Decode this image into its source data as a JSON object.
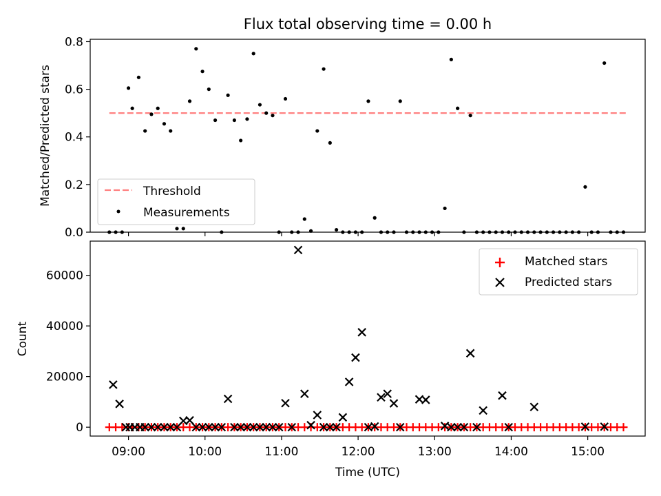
{
  "chart_data": [
    {
      "type": "scatter",
      "title": "Flux total observing time = 0.00 h",
      "xlabel": "",
      "ylabel": "Matched/Predicted stars",
      "ylim": [
        0.0,
        0.81
      ],
      "yticks": [
        "0.0",
        "0.2",
        "0.4",
        "0.6",
        "0.8"
      ],
      "legend": {
        "placement": "lower-left",
        "entries": [
          "Threshold",
          "Measurements"
        ]
      },
      "threshold": {
        "name": "Threshold",
        "x": [
          "08:45",
          "15:30"
        ],
        "y": 0.5,
        "color": "#ff7f7f"
      },
      "series": [
        {
          "name": "Measurements",
          "color": "#000000",
          "x": [
            "08:45",
            "08:50",
            "08:55",
            "09:00",
            "09:03",
            "09:08",
            "09:13",
            "09:18",
            "09:23",
            "09:28",
            "09:33",
            "09:38",
            "09:43",
            "09:48",
            "09:53",
            "09:58",
            "10:03",
            "10:08",
            "10:13",
            "10:18",
            "10:23",
            "10:28",
            "10:33",
            "10:38",
            "10:43",
            "10:48",
            "10:53",
            "10:58",
            "11:03",
            "11:08",
            "11:13",
            "11:18",
            "11:23",
            "11:28",
            "11:33",
            "11:38",
            "11:43",
            "11:48",
            "11:53",
            "11:58",
            "12:03",
            "12:08",
            "12:13",
            "12:18",
            "12:23",
            "12:28",
            "12:33",
            "12:38",
            "12:43",
            "12:48",
            "12:53",
            "12:58",
            "13:03",
            "13:08",
            "13:13",
            "13:18",
            "13:23",
            "13:28",
            "13:33",
            "13:38",
            "13:43",
            "13:48",
            "13:53",
            "13:58",
            "14:03",
            "14:08",
            "14:13",
            "14:18",
            "14:23",
            "14:28",
            "14:33",
            "14:38",
            "14:43",
            "14:48",
            "14:53",
            "14:58",
            "15:03",
            "15:08",
            "15:13",
            "15:18",
            "15:23",
            "15:28"
          ],
          "y": [
            0.0,
            0.0,
            0.0,
            0.605,
            0.52,
            0.65,
            0.425,
            0.495,
            0.52,
            0.455,
            0.425,
            0.015,
            0.015,
            0.55,
            0.77,
            0.675,
            0.6,
            0.47,
            0.0,
            0.575,
            0.47,
            0.385,
            0.475,
            0.75,
            0.535,
            0.5,
            0.49,
            0.0,
            0.56,
            0.0,
            0.0,
            0.055,
            0.005,
            0.425,
            0.685,
            0.375,
            0.01,
            0.0,
            0.0,
            0.0,
            0.0,
            0.55,
            0.06,
            0.0,
            0.0,
            0.0,
            0.55,
            0.0,
            0.0,
            0.0,
            0.0,
            0.0,
            0.0,
            0.1,
            0.725,
            0.52,
            0.0,
            0.49,
            0.0,
            0.0,
            0.0,
            0.0,
            0.0,
            0.0,
            0.0,
            0.0,
            0.0,
            0.0,
            0.0,
            0.0,
            0.0,
            0.0,
            0.0,
            0.0,
            0.0,
            0.19,
            0.0,
            0.0,
            0.71,
            0.0,
            0.0,
            0.0
          ]
        }
      ]
    },
    {
      "type": "scatter",
      "xlabel": "Time (UTC)",
      "ylabel": "Count",
      "ylim": [
        -3500,
        73500
      ],
      "yticks": [
        "0",
        "20000",
        "40000",
        "60000"
      ],
      "xlim": [
        "08:30",
        "15:45"
      ],
      "xticks": [
        "09:00",
        "10:00",
        "11:00",
        "12:00",
        "13:00",
        "14:00",
        "15:00"
      ],
      "legend": {
        "placement": "top-right",
        "entries": [
          "Matched stars",
          "Predicted stars"
        ]
      },
      "series": [
        {
          "name": "Matched stars",
          "marker": "plus",
          "color": "#ff0000",
          "x": [
            "08:45",
            "08:50",
            "08:55",
            "09:00",
            "09:03",
            "09:08",
            "09:13",
            "09:18",
            "09:23",
            "09:28",
            "09:33",
            "09:38",
            "09:43",
            "09:48",
            "09:53",
            "09:58",
            "10:03",
            "10:08",
            "10:13",
            "10:18",
            "10:23",
            "10:28",
            "10:33",
            "10:38",
            "10:43",
            "10:48",
            "10:53",
            "10:58",
            "11:03",
            "11:08",
            "11:13",
            "11:18",
            "11:23",
            "11:28",
            "11:33",
            "11:38",
            "11:43",
            "11:48",
            "11:53",
            "11:58",
            "12:03",
            "12:08",
            "12:13",
            "12:18",
            "12:23",
            "12:28",
            "12:33",
            "12:38",
            "12:43",
            "12:48",
            "12:53",
            "12:58",
            "13:03",
            "13:08",
            "13:13",
            "13:18",
            "13:23",
            "13:28",
            "13:33",
            "13:38",
            "13:43",
            "13:48",
            "13:53",
            "13:58",
            "14:03",
            "14:08",
            "14:13",
            "14:18",
            "14:23",
            "14:28",
            "14:33",
            "14:38",
            "14:43",
            "14:48",
            "14:53",
            "14:58",
            "15:03",
            "15:08",
            "15:13",
            "15:18",
            "15:23",
            "15:28"
          ],
          "y": [
            0,
            0,
            0,
            0,
            0,
            0,
            0,
            0,
            0,
            0,
            0,
            0,
            0,
            0,
            0,
            0,
            0,
            0,
            0,
            0,
            0,
            0,
            0,
            0,
            0,
            0,
            0,
            0,
            0,
            0,
            0,
            0,
            0,
            0,
            0,
            0,
            0,
            0,
            0,
            0,
            0,
            0,
            0,
            0,
            0,
            0,
            0,
            0,
            0,
            0,
            0,
            0,
            0,
            0,
            0,
            0,
            0,
            0,
            0,
            0,
            0,
            0,
            0,
            0,
            0,
            0,
            0,
            0,
            0,
            0,
            0,
            0,
            0,
            0,
            0,
            0,
            0,
            0,
            0,
            0,
            0,
            0
          ]
        },
        {
          "name": "Predicted stars",
          "marker": "x",
          "color": "#000000",
          "x": [
            "08:48",
            "08:53",
            "08:58",
            "09:01",
            "09:05",
            "09:09",
            "09:13",
            "09:18",
            "09:23",
            "09:28",
            "09:33",
            "09:38",
            "09:43",
            "09:48",
            "09:53",
            "09:58",
            "10:03",
            "10:08",
            "10:13",
            "10:18",
            "10:23",
            "10:28",
            "10:33",
            "10:38",
            "10:43",
            "10:48",
            "10:53",
            "10:58",
            "11:03",
            "11:08",
            "11:13",
            "11:18",
            "11:23",
            "11:28",
            "11:33",
            "11:38",
            "11:43",
            "11:48",
            "11:53",
            "11:58",
            "12:03",
            "12:08",
            "12:13",
            "12:18",
            "12:23",
            "12:28",
            "12:33",
            "12:48",
            "12:53",
            "13:08",
            "13:13",
            "13:18",
            "13:23",
            "13:28",
            "13:33",
            "13:38",
            "13:53",
            "13:58",
            "14:18",
            "14:58",
            "15:13"
          ],
          "y": [
            16800,
            9200,
            0,
            0,
            0,
            0,
            0,
            0,
            0,
            0,
            0,
            0,
            2500,
            2700,
            0,
            0,
            0,
            0,
            0,
            11200,
            0,
            0,
            0,
            0,
            0,
            0,
            0,
            0,
            9500,
            0,
            70000,
            13200,
            800,
            4800,
            0,
            0,
            0,
            3900,
            17900,
            27500,
            37500,
            0,
            300,
            11800,
            13200,
            9400,
            0,
            11000,
            10800,
            500,
            0,
            0,
            0,
            29200,
            0,
            6600,
            12500,
            0,
            8000,
            200,
            200
          ]
        }
      ]
    }
  ]
}
